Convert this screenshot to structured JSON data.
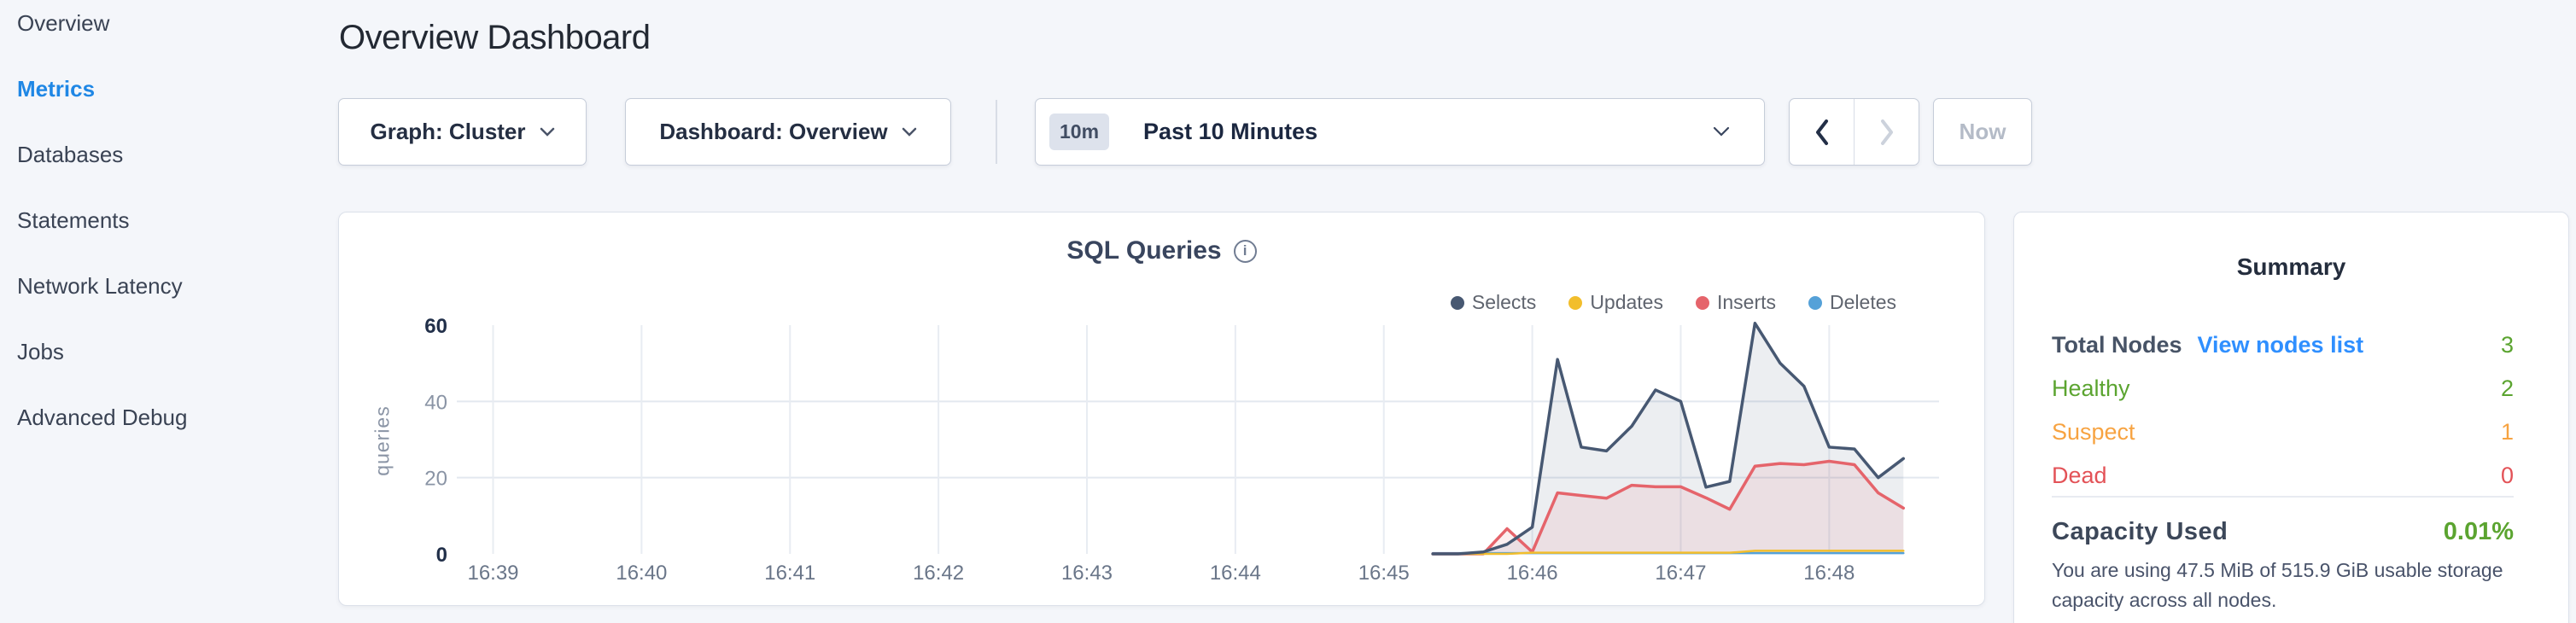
{
  "page": {
    "title": "Overview Dashboard"
  },
  "colors": {
    "accent_blue": "#1f87e5",
    "link_blue": "#2f8fff",
    "green": "#5ba430",
    "orange": "#f7a341",
    "red": "#e35257"
  },
  "sidebar": {
    "items": [
      {
        "label": "Overview"
      },
      {
        "label": "Metrics"
      },
      {
        "label": "Databases"
      },
      {
        "label": "Statements"
      },
      {
        "label": "Network Latency"
      },
      {
        "label": "Jobs"
      },
      {
        "label": "Advanced Debug"
      }
    ]
  },
  "controls": {
    "graph_dropdown": "Graph: Cluster",
    "dashboard_dropdown": "Dashboard: Overview",
    "time_window": {
      "badge": "10m",
      "label": "Past 10 Minutes"
    },
    "now_button": "Now"
  },
  "chart_data": {
    "type": "area",
    "title": "SQL Queries",
    "ylabel": "queries",
    "ylim": [
      0,
      60
    ],
    "y_ticks": [
      0,
      20,
      40,
      60
    ],
    "y_gridlines": [
      20,
      40
    ],
    "x_ticks": [
      "16:39",
      "16:40",
      "16:41",
      "16:42",
      "16:43",
      "16:44",
      "16:45",
      "16:46",
      "16:47",
      "16:48"
    ],
    "x_tick_minutes": [
      39,
      40,
      41,
      42,
      43,
      44,
      45,
      46,
      47,
      48
    ],
    "x_domain_minutes": [
      38.79,
      48.74
    ],
    "x_minutes": [
      45.33,
      45.5,
      45.67,
      45.83,
      46.0,
      46.17,
      46.33,
      46.5,
      46.67,
      46.83,
      47.0,
      47.17,
      47.33,
      47.5,
      47.67,
      47.83,
      48.0,
      48.17,
      48.33,
      48.5
    ],
    "series": [
      {
        "name": "Selects",
        "color": "#475872",
        "fill": true,
        "values": [
          0,
          0,
          0.5,
          2.5,
          7,
          51,
          28,
          27,
          33.5,
          43,
          40,
          17.5,
          19,
          60.5,
          50,
          44,
          28,
          27.5,
          20,
          25
        ]
      },
      {
        "name": "Updates",
        "color": "#f2be2c",
        "fill": false,
        "values": [
          0,
          0,
          0,
          0,
          0.3,
          0.3,
          0.3,
          0.3,
          0.3,
          0.3,
          0.3,
          0.3,
          0.3,
          0.8,
          0.8,
          0.8,
          0.8,
          0.8,
          0.8,
          0.8
        ]
      },
      {
        "name": "Inserts",
        "color": "#e5646b",
        "fill": true,
        "values": [
          0,
          0,
          0,
          6.6,
          0.5,
          16,
          15.3,
          14.6,
          18,
          17.6,
          17.6,
          14.7,
          11.7,
          23,
          23.7,
          23.4,
          24.3,
          23.4,
          16,
          12
        ]
      },
      {
        "name": "Deletes",
        "color": "#55a1d8",
        "fill": false,
        "values": [
          0.2,
          0.2,
          0.2,
          0.2,
          0.2,
          0.2,
          0.2,
          0.2,
          0.2,
          0.2,
          0.2,
          0.2,
          0.2,
          0.2,
          0.2,
          0.2,
          0.2,
          0.2,
          0.2,
          0.2
        ]
      }
    ]
  },
  "summary": {
    "title": "Summary",
    "rows": [
      {
        "label": "Total Nodes",
        "link": "View nodes list",
        "value": "3"
      },
      {
        "label": "Healthy",
        "value": "2"
      },
      {
        "label": "Suspect",
        "value": "1"
      },
      {
        "label": "Dead",
        "value": "0"
      }
    ],
    "capacity": {
      "label": "Capacity Used",
      "value": "0.01%",
      "description": "You are using 47.5 MiB of 515.9 GiB usable storage capacity across all nodes."
    }
  }
}
